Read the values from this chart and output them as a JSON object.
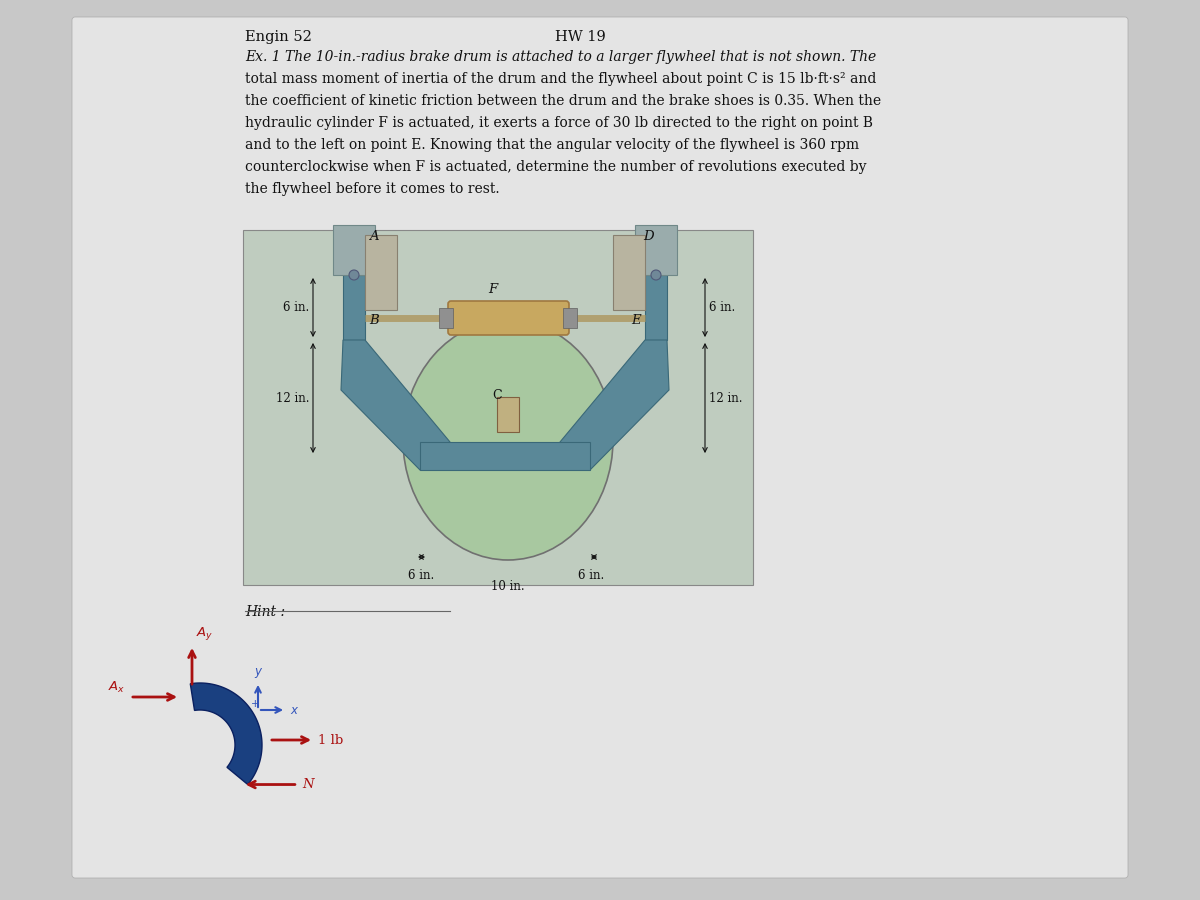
{
  "bg_color": "#c8c8c8",
  "page_bg": "#e4e4e4",
  "title": "HW 19",
  "course": "Engin 52",
  "problem_lines": [
    "Ex. 1 The 10-in.-radius brake drum is attached to a larger flywheel that is not shown. The",
    "total mass moment of inertia of the drum and the flywheel about point C is 15 lb·ft·s² and",
    "the coefficient of kinetic friction between the drum and the brake shoes is 0.35. When the",
    "hydraulic cylinder F is actuated, it exerts a force of 30 lb directed to the right on point B",
    "and to the left on point E. Knowing that the angular velocity of the flywheel is 360 rpm",
    "counterclockwise when F is actuated, determine the number of revolutions executed by",
    "the flywheel before it comes to rest."
  ],
  "hint_label": "Hint :",
  "text_color": "#111111",
  "dim_color": "#111111",
  "metal_color": "#5a8898",
  "metal_dark": "#3a6878",
  "drum_color": "#a8c8a0",
  "drum_edge": "#707070",
  "shoe_color": "#b8b4a0",
  "shoe_edge": "#888070",
  "cyl_color": "#c8a860",
  "cyl_edge": "#a07840",
  "mount_color": "#9aacac",
  "mount_edge": "#708888",
  "diag_bg": "#bfccbf",
  "hint_arrow": "#aa1111",
  "hint_shape": "#1a4080",
  "hint_shape_edge": "#0a2060",
  "coord_color": "#3355bb"
}
